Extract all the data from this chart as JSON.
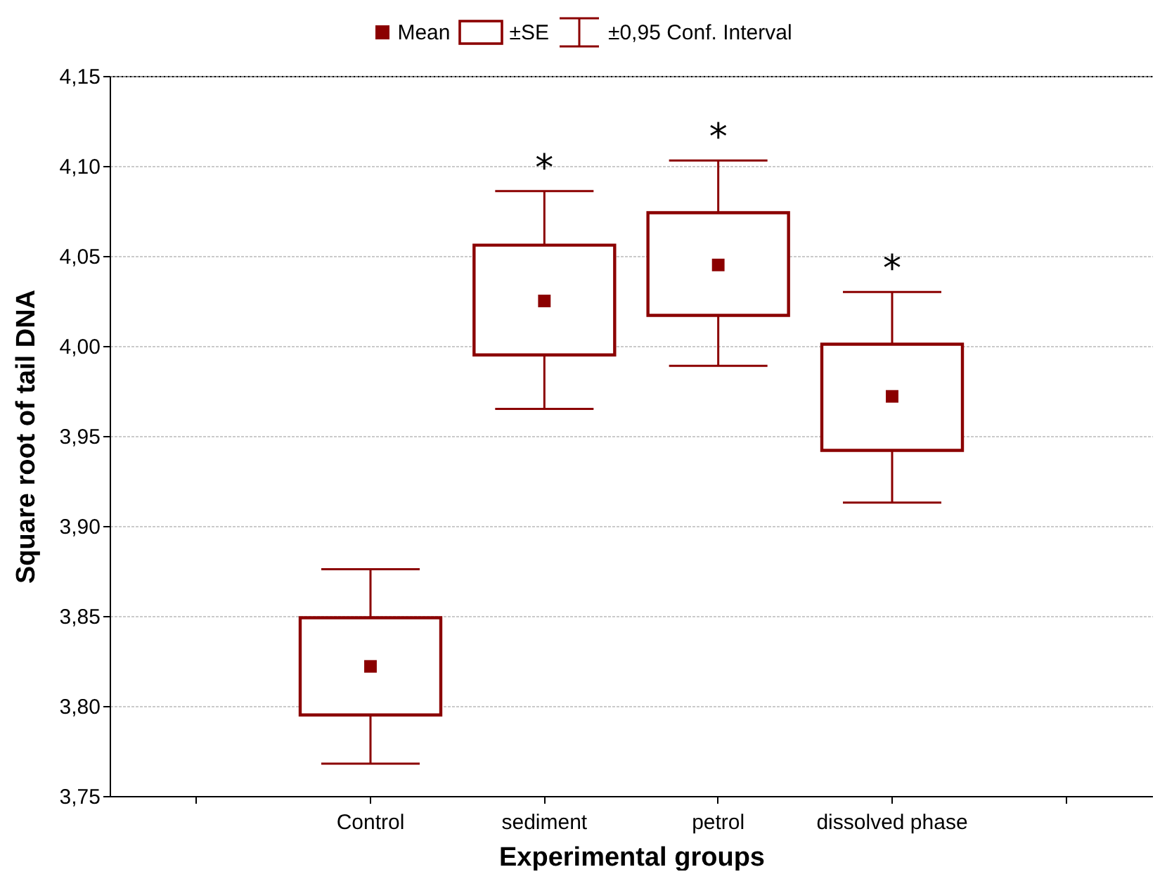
{
  "chart_data": {
    "type": "scatter",
    "xlabel": "Experimental groups",
    "ylabel": "Square root of tail DNA",
    "categories": [
      null,
      "Control",
      "sediment",
      "petrol",
      "dissolved phase",
      null
    ],
    "series": [
      {
        "name": "Mean",
        "marker": "square",
        "color": "#8b0000",
        "values": [
          null,
          3.822,
          4.025,
          4.045,
          3.972,
          null
        ],
        "errors": [
          null,
          [
            3.768,
            3.876
          ],
          [
            3.965,
            4.086
          ],
          [
            3.989,
            4.103
          ],
          [
            3.913,
            4.03
          ],
          null
        ]
      },
      {
        "name": "±SE",
        "type": "bar",
        "color": "#8b0000",
        "base": [
          null,
          3.795,
          3.995,
          4.017,
          3.942,
          null
        ],
        "values": [
          null,
          0.054,
          0.061,
          0.057,
          0.059,
          null
        ]
      }
    ],
    "ylim": [
      3.75,
      4.15
    ],
    "yticks": [
      {
        "value": 3.75,
        "label": "3,75"
      },
      {
        "value": 3.8,
        "label": "3,80"
      },
      {
        "value": 3.85,
        "label": "3,85"
      },
      {
        "value": 3.9,
        "label": "3,90"
      },
      {
        "value": 3.95,
        "label": "3,95"
      },
      {
        "value": 4.0,
        "label": "4,00"
      },
      {
        "value": 4.05,
        "label": "4,05"
      },
      {
        "value": 4.1,
        "label": "4,10"
      },
      {
        "value": 4.15,
        "label": "4,15"
      }
    ],
    "annotations": [
      "±0,95 Conf. Interval",
      {
        "text": "*",
        "x": "sediment",
        "y": 4.086
      },
      {
        "text": "*",
        "x": "petrol",
        "y": 4.103
      },
      {
        "text": "*",
        "x": "dissolved phase",
        "y": 4.03
      }
    ],
    "grid": "y",
    "legend": "top"
  }
}
